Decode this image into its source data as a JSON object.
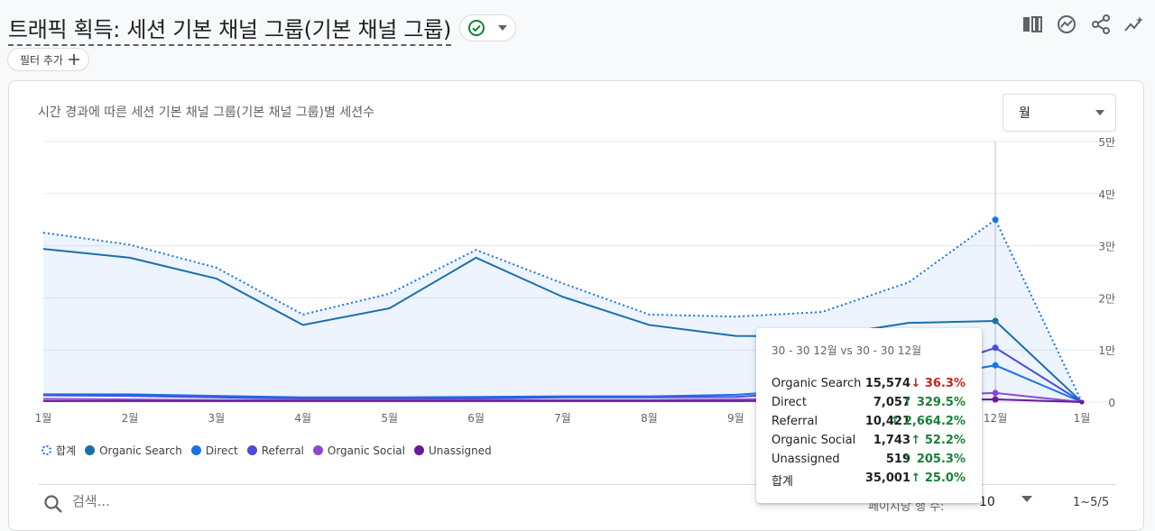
{
  "header": {
    "title": "트래픽 획득: 세션 기본 채널 그룹(기본 채널 그룹)",
    "status_icon": "check-circle-icon",
    "actions": [
      "compare-columns-icon",
      "insights-icon",
      "share-icon",
      "trend-icon"
    ]
  },
  "filter": {
    "add_label": "필터 추가"
  },
  "chart_card": {
    "title": "시간 경과에 따른 세션 기본 채널 그룹(기본 채널 그룹)별 세션수",
    "period_value": "월"
  },
  "chart_data": {
    "type": "line",
    "title": "시간 경과에 따른 세션 기본 채널 그룹(기본 채널 그룹)별 세션수",
    "categories": [
      "1월",
      "2월",
      "3월",
      "4월",
      "5월",
      "6월",
      "7월",
      "8월",
      "9월",
      "10월",
      "11월",
      "12월",
      "1월"
    ],
    "y_ticks": [
      "0",
      "1만",
      "2만",
      "3만",
      "4만",
      "5만"
    ],
    "ylim": [
      0,
      50000
    ],
    "grid": true,
    "legend_position": "bottom-left",
    "series": [
      {
        "name": "합계",
        "style": "dotted-area",
        "color": "#1a73e8",
        "values": [
          32500,
          30200,
          25800,
          16800,
          20800,
          29200,
          22800,
          16800,
          16400,
          17300,
          23000,
          35001,
          0
        ]
      },
      {
        "name": "Organic Search",
        "color": "#1a6fa8",
        "values": [
          29400,
          27700,
          23700,
          14800,
          18000,
          27700,
          20200,
          14800,
          12700,
          12600,
          15200,
          15574,
          0
        ]
      },
      {
        "name": "Direct",
        "color": "#1a73e8",
        "values": [
          1500,
          1500,
          1200,
          900,
          900,
          1000,
          1100,
          1100,
          1400,
          2500,
          4200,
          7057,
          0
        ]
      },
      {
        "name": "Referral",
        "color": "#4a4ed6",
        "values": [
          1300,
          1200,
          900,
          700,
          700,
          700,
          900,
          900,
          1000,
          2000,
          4800,
          10421,
          0
        ]
      },
      {
        "name": "Organic Social",
        "color": "#8a4ad6",
        "values": [
          600,
          500,
          400,
          400,
          400,
          400,
          400,
          400,
          500,
          700,
          1200,
          1743,
          0
        ]
      },
      {
        "name": "Unassigned",
        "color": "#6a1b9a",
        "values": [
          200,
          200,
          200,
          200,
          200,
          200,
          200,
          200,
          200,
          300,
          400,
          519,
          0
        ]
      }
    ]
  },
  "legend": [
    {
      "label": "합계",
      "color": "#1a73e8",
      "dashed": true
    },
    {
      "label": "Organic Search",
      "color": "#1a6fa8"
    },
    {
      "label": "Direct",
      "color": "#1a73e8"
    },
    {
      "label": "Referral",
      "color": "#4a4ed6"
    },
    {
      "label": "Organic Social",
      "color": "#8a4ad6"
    },
    {
      "label": "Unassigned",
      "color": "#6a1b9a"
    }
  ],
  "tooltip": {
    "header": "30 - 30 12월 vs 30 - 30 12월",
    "rows": [
      {
        "name": "Organic Search",
        "value": "15,574",
        "change": "↓ 36.3%",
        "dir": "down"
      },
      {
        "name": "Direct",
        "value": "7,057",
        "change": "↑ 329.5%",
        "dir": "up"
      },
      {
        "name": "Referral",
        "value": "10,421",
        "change": "↑ 2,664.2%",
        "dir": "up"
      },
      {
        "name": "Organic Social",
        "value": "1,743",
        "change": "↑ 52.2%",
        "dir": "up"
      },
      {
        "name": "Unassigned",
        "value": "519",
        "change": "↑ 205.3%",
        "dir": "up"
      },
      {
        "name": "합계",
        "value": "35,001",
        "change": "↑ 25.0%",
        "dir": "up"
      }
    ]
  },
  "table_controls": {
    "search_placeholder": "검색...",
    "rows_per_page_label": "페이지당 행 수:",
    "rows_per_page_value": "10",
    "paging": "1~5/5"
  }
}
